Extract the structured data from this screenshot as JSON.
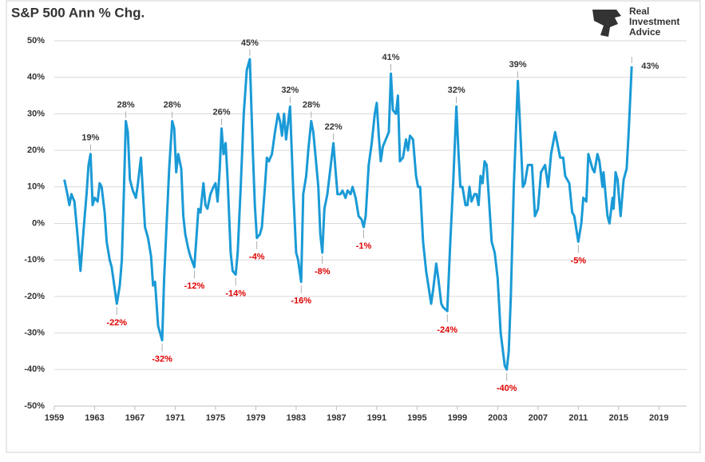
{
  "chart_data": {
    "type": "line",
    "title": "S&P 500 Ann % Chg.",
    "logo": [
      "Real",
      "Investment",
      "Advice"
    ],
    "xlim": [
      1959,
      2021.75
    ],
    "xticks": [
      1959,
      1963,
      1967,
      1971,
      1975,
      1979,
      1983,
      1987,
      1991,
      1995,
      1999,
      2003,
      2007,
      2011,
      2015,
      2019
    ],
    "ylim": [
      -50,
      50
    ],
    "yticks": [
      {
        "value": -50,
        "label": "-50%"
      },
      {
        "value": -40,
        "label": "-40%"
      },
      {
        "value": -30,
        "label": "-30%"
      },
      {
        "value": -20,
        "label": "-20%"
      },
      {
        "value": -10,
        "label": "-10%"
      },
      {
        "value": 0,
        "label": "0%"
      },
      {
        "value": 10,
        "label": "10%"
      },
      {
        "value": 20,
        "label": "20%"
      },
      {
        "value": 30,
        "label": "30%"
      },
      {
        "value": 40,
        "label": "40%"
      },
      {
        "value": 50,
        "label": "50%"
      }
    ],
    "grid": true,
    "series": [
      {
        "color": "#1a9ad6",
        "x": [
          1960.0,
          1960.3,
          1960.5,
          1960.7,
          1961.0,
          1961.3,
          1961.6,
          1961.9,
          1962.2,
          1962.4,
          1962.6,
          1962.8,
          1963.0,
          1963.3,
          1963.5,
          1963.7,
          1964.0,
          1964.2,
          1964.5,
          1964.7,
          1965.2,
          1965.5,
          1965.7,
          1965.9,
          1966.1,
          1966.3,
          1966.5,
          1966.8,
          1967.1,
          1967.3,
          1967.6,
          1967.8,
          1968.0,
          1968.3,
          1968.6,
          1968.8,
          1969.0,
          1969.3,
          1969.7,
          1969.9,
          1970.1,
          1970.4,
          1970.7,
          1970.9,
          1971.1,
          1971.3,
          1971.6,
          1971.8,
          1972.0,
          1972.3,
          1972.5,
          1972.9,
          1973.1,
          1973.3,
          1973.5,
          1973.8,
          1974.0,
          1974.2,
          1974.5,
          1974.8,
          1975.0,
          1975.2,
          1975.4,
          1975.6,
          1975.8,
          1976.0,
          1976.2,
          1976.5,
          1976.7,
          1977.0,
          1977.2,
          1977.5,
          1977.8,
          1978.1,
          1978.4,
          1978.7,
          1978.9,
          1979.1,
          1979.4,
          1979.6,
          1979.9,
          1980.1,
          1980.3,
          1980.6,
          1980.9,
          1981.2,
          1981.4,
          1981.6,
          1981.8,
          1982.0,
          1982.4,
          1982.7,
          1983.0,
          1983.2,
          1983.5,
          1983.7,
          1984.0,
          1984.2,
          1984.5,
          1984.7,
          1985.0,
          1985.2,
          1985.4,
          1985.6,
          1985.8,
          1986.1,
          1986.4,
          1986.7,
          1986.9,
          1987.1,
          1987.4,
          1987.6,
          1987.9,
          1988.1,
          1988.4,
          1988.6,
          1988.9,
          1989.2,
          1989.5,
          1989.7,
          1989.9,
          1990.2,
          1990.5,
          1990.8,
          1991.0,
          1991.2,
          1991.4,
          1991.6,
          1991.9,
          1992.2,
          1992.4,
          1992.6,
          1992.9,
          1993.1,
          1993.3,
          1993.6,
          1993.9,
          1994.1,
          1994.3,
          1994.6,
          1994.9,
          1995.1,
          1995.3,
          1995.6,
          1995.9,
          1996.4,
          1996.6,
          1996.9,
          1997.1,
          1997.4,
          1997.6,
          1998.0,
          1998.3,
          1998.6,
          1998.9,
          1999.1,
          1999.3,
          1999.5,
          1999.8,
          2000.0,
          2000.2,
          2000.4,
          2000.7,
          2000.9,
          2001.1,
          2001.3,
          2001.5,
          2001.7,
          2001.9,
          2002.1,
          2002.4,
          2002.7,
          2003.0,
          2003.3,
          2003.7,
          2003.9,
          2004.1,
          2004.3,
          2004.6,
          2005.0,
          2005.2,
          2005.5,
          2005.7,
          2006.0,
          2006.4,
          2006.7,
          2007.0,
          2007.3,
          2007.7,
          2008.0,
          2008.3,
          2008.7,
          2009.2,
          2009.5,
          2009.7,
          2010.1,
          2010.4,
          2010.6,
          2011.0,
          2011.3,
          2011.5,
          2011.8,
          2012.0,
          2012.4,
          2012.6,
          2012.9,
          2013.1,
          2013.4,
          2013.5,
          2013.9,
          2014.1,
          2014.4,
          2014.5,
          2014.7,
          2014.9,
          2015.2,
          2015.5,
          2015.8,
          2016.0,
          2016.3
        ],
        "values": [
          12,
          8,
          5,
          8,
          6,
          -3,
          -13,
          -2,
          8,
          16,
          19,
          5,
          7,
          6,
          11,
          10,
          3,
          -5,
          -10,
          -12,
          -22,
          -17,
          -10,
          8,
          28,
          25,
          12,
          9,
          7,
          11,
          18,
          8,
          -1,
          -4,
          -9,
          -17,
          -16,
          -28,
          -32,
          -15,
          -3,
          15,
          28,
          26,
          14,
          19,
          15,
          2,
          -3,
          -7,
          -9,
          -12,
          -4,
          4,
          3,
          11,
          5,
          4,
          8,
          10,
          11,
          6,
          14,
          26,
          19,
          22,
          12,
          -8,
          -13,
          -14,
          -8,
          10,
          30,
          42,
          45,
          20,
          5,
          -4,
          -3,
          -1,
          10,
          18,
          17,
          19,
          25,
          30,
          28,
          24,
          30,
          23,
          32,
          10,
          -8,
          -10,
          -16,
          8,
          13,
          20,
          28,
          25,
          16,
          10,
          -3,
          -8,
          4,
          8,
          15,
          22,
          15,
          8,
          8,
          9,
          7,
          9,
          8,
          10,
          7,
          2,
          1,
          -1,
          2,
          16,
          22,
          30,
          33,
          24,
          17,
          21,
          23,
          25,
          41,
          31,
          30,
          35,
          17,
          18,
          23,
          20,
          24,
          23,
          13,
          10,
          10,
          -5,
          -13,
          -22,
          -18,
          -11,
          -15,
          -22,
          -23,
          -24,
          -5,
          12,
          32,
          20,
          10,
          10,
          5,
          5,
          10,
          6,
          8,
          8,
          5,
          13,
          11,
          17,
          16,
          8,
          -5,
          -8,
          -15,
          -30,
          -39,
          -40,
          -35,
          -20,
          10,
          39,
          28,
          10,
          11,
          16,
          16,
          2,
          4,
          14,
          16,
          10,
          19,
          25,
          18,
          18,
          13,
          11,
          3,
          2,
          -5,
          0,
          7,
          6,
          19,
          15,
          14,
          19,
          17,
          10,
          14,
          2,
          0,
          7,
          4,
          14,
          12,
          2,
          12,
          15,
          25,
          43
        ]
      }
    ],
    "annotations": [
      {
        "x": 1962.6,
        "value": 19,
        "label": "19%"
      },
      {
        "x": 1965.2,
        "value": -22,
        "label": "-22%"
      },
      {
        "x": 1966.1,
        "value": 28,
        "label": "28%"
      },
      {
        "x": 1969.7,
        "value": -32,
        "label": "-32%"
      },
      {
        "x": 1970.7,
        "value": 28,
        "label": "28%"
      },
      {
        "x": 1972.9,
        "value": -12,
        "label": "-12%"
      },
      {
        "x": 1975.6,
        "value": 26,
        "label": "26%"
      },
      {
        "x": 1977.0,
        "value": -14,
        "label": "-14%"
      },
      {
        "x": 1978.4,
        "value": 45,
        "label": "45%"
      },
      {
        "x": 1979.1,
        "value": -4,
        "label": "-4%"
      },
      {
        "x": 1982.4,
        "value": 32,
        "label": "32%"
      },
      {
        "x": 1983.5,
        "value": -16,
        "label": "-16%"
      },
      {
        "x": 1984.5,
        "value": 28,
        "label": "28%"
      },
      {
        "x": 1985.6,
        "value": -8,
        "label": "-8%"
      },
      {
        "x": 1986.7,
        "value": 22,
        "label": "22%"
      },
      {
        "x": 1989.7,
        "value": -1,
        "label": "-1%"
      },
      {
        "x": 1992.4,
        "value": 41,
        "label": "41%"
      },
      {
        "x": 1998.0,
        "value": -24,
        "label": "-24%"
      },
      {
        "x": 1998.9,
        "value": 32,
        "label": "32%"
      },
      {
        "x": 2003.9,
        "value": -40,
        "label": "-40%"
      },
      {
        "x": 2005.0,
        "value": 39,
        "label": "39%"
      },
      {
        "x": 2011.0,
        "value": -5,
        "label": "-5%"
      },
      {
        "x": 2016.3,
        "value": 43,
        "label": "43%"
      }
    ]
  }
}
